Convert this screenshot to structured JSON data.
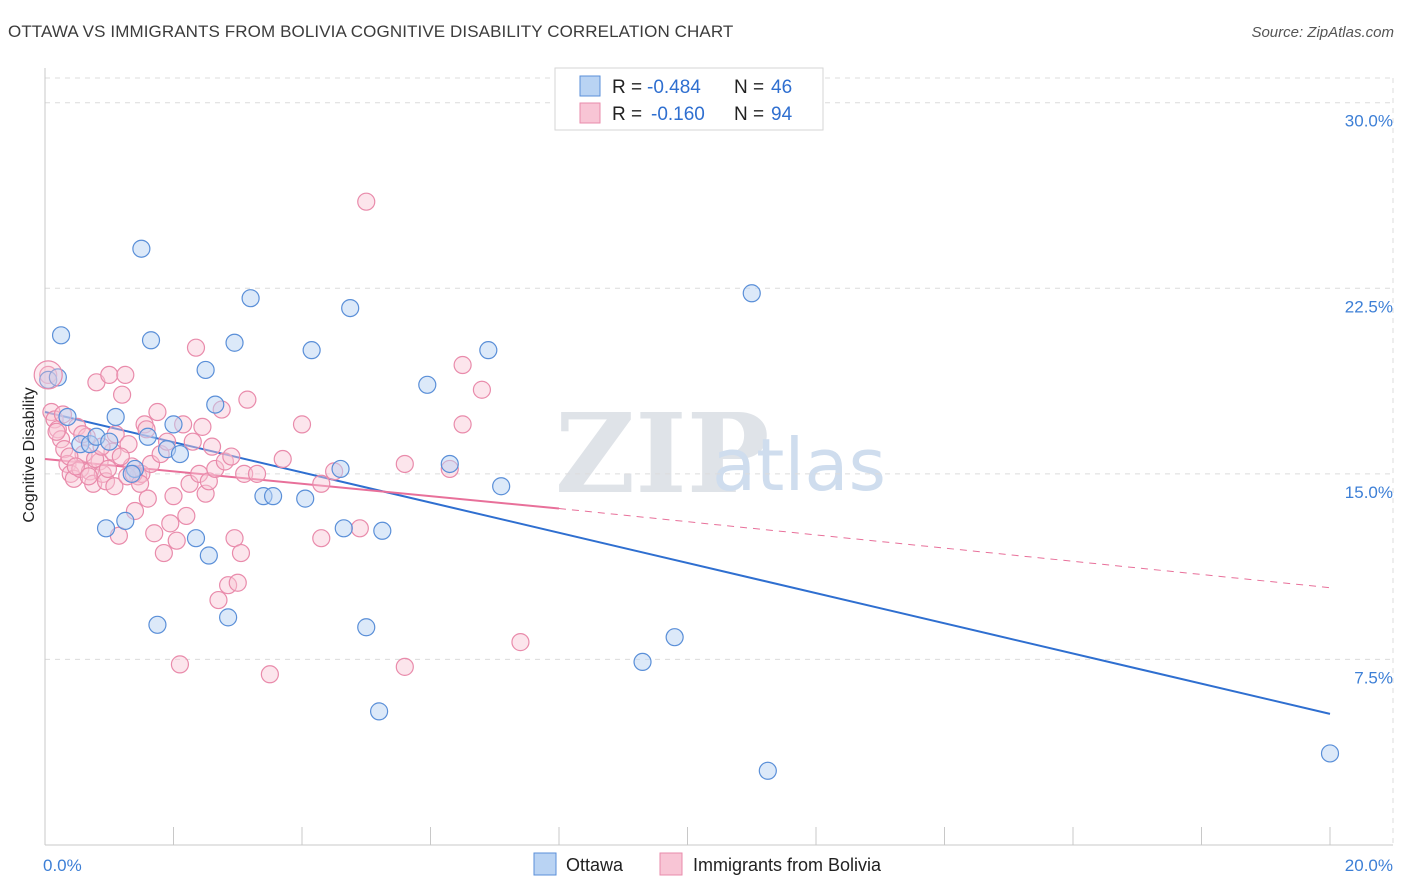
{
  "title": "OTTAWA VS IMMIGRANTS FROM BOLIVIA COGNITIVE DISABILITY CORRELATION CHART",
  "source": "Source: ZipAtlas.com",
  "watermark": {
    "zip": "ZIP",
    "atlas": "atlas"
  },
  "colors": {
    "ottawa_fill": "#b9d3f3",
    "ottawa_stroke": "#5a8fd8",
    "ottawa_line": "#2f6fd0",
    "bolivia_fill": "#f8c5d5",
    "bolivia_stroke": "#e98bab",
    "bolivia_line": "#e8709a",
    "grid": "#dcdcdc",
    "axis_text": "#3d7fd6"
  },
  "legend": {
    "rows": [
      {
        "r_label": "R =",
        "r_value": "-0.484",
        "n_label": "N =",
        "n_value": "46"
      },
      {
        "r_label": "R =",
        "r_value": "-0.160",
        "n_label": "N =",
        "n_value": "94"
      }
    ]
  },
  "chart_data": {
    "type": "scatter",
    "title": "OTTAWA VS IMMIGRANTS FROM BOLIVIA COGNITIVE DISABILITY CORRELATION CHART",
    "xlabel": "",
    "ylabel": "Cognitive Disability",
    "xlim": [
      0,
      20
    ],
    "ylim": [
      0,
      31
    ],
    "x_tick_labels": [
      "0.0%",
      "20.0%"
    ],
    "y_ticks": [
      7.5,
      15.0,
      22.5,
      30.0
    ],
    "y_tick_labels": [
      "7.5%",
      "15.0%",
      "22.5%",
      "30.0%"
    ],
    "grid": true,
    "legend_position": "top-center",
    "series": [
      {
        "name": "Ottawa",
        "r": -0.484,
        "n": 46,
        "trend": {
          "x": [
            0,
            20
          ],
          "y": [
            17.5,
            5.3
          ]
        },
        "points": [
          [
            0.05,
            18.8
          ],
          [
            0.25,
            20.6
          ],
          [
            0.35,
            17.3
          ],
          [
            0.55,
            16.2
          ],
          [
            0.7,
            16.2
          ],
          [
            0.8,
            16.5
          ],
          [
            0.95,
            12.8
          ],
          [
            1.1,
            17.3
          ],
          [
            1.25,
            13.1
          ],
          [
            1.4,
            15.2
          ],
          [
            1.5,
            24.1
          ],
          [
            1.6,
            16.5
          ],
          [
            1.65,
            20.4
          ],
          [
            1.75,
            8.9
          ],
          [
            1.9,
            16.0
          ],
          [
            2.0,
            17.0
          ],
          [
            2.1,
            15.8
          ],
          [
            2.35,
            12.4
          ],
          [
            2.5,
            19.2
          ],
          [
            2.55,
            11.7
          ],
          [
            2.65,
            17.8
          ],
          [
            2.85,
            9.2
          ],
          [
            2.95,
            20.3
          ],
          [
            3.2,
            22.1
          ],
          [
            3.4,
            14.1
          ],
          [
            3.55,
            14.1
          ],
          [
            4.15,
            20.0
          ],
          [
            4.6,
            15.2
          ],
          [
            4.65,
            12.8
          ],
          [
            4.75,
            21.7
          ],
          [
            5.0,
            8.8
          ],
          [
            5.2,
            5.4
          ],
          [
            5.25,
            12.7
          ],
          [
            5.95,
            18.6
          ],
          [
            6.3,
            15.4
          ],
          [
            6.9,
            20.0
          ],
          [
            7.1,
            14.5
          ],
          [
            9.3,
            7.4
          ],
          [
            9.8,
            8.4
          ],
          [
            11.0,
            22.3
          ],
          [
            11.25,
            3.0
          ],
          [
            20.0,
            3.7
          ],
          [
            0.2,
            18.9
          ],
          [
            1.0,
            16.3
          ],
          [
            1.35,
            15.0
          ],
          [
            4.05,
            14.0
          ]
        ]
      },
      {
        "name": "Immigrants from Bolivia",
        "r": -0.16,
        "n": 94,
        "trend": {
          "x": [
            0,
            8
          ],
          "y": [
            15.6,
            13.6
          ]
        },
        "trend_extended": {
          "x": [
            8,
            20
          ],
          "y": [
            13.6,
            10.4
          ]
        },
        "points": [
          [
            0.05,
            19.0
          ],
          [
            0.1,
            17.5
          ],
          [
            0.15,
            17.2
          ],
          [
            0.2,
            16.8
          ],
          [
            0.25,
            16.4
          ],
          [
            0.3,
            16.0
          ],
          [
            0.35,
            15.4
          ],
          [
            0.4,
            15.0
          ],
          [
            0.45,
            14.8
          ],
          [
            0.5,
            16.9
          ],
          [
            0.55,
            15.2
          ],
          [
            0.6,
            15.8
          ],
          [
            0.65,
            16.5
          ],
          [
            0.7,
            15.1
          ],
          [
            0.75,
            14.6
          ],
          [
            0.8,
            18.7
          ],
          [
            0.85,
            15.5
          ],
          [
            0.9,
            15.0
          ],
          [
            0.95,
            14.7
          ],
          [
            1.0,
            19.0
          ],
          [
            1.05,
            15.9
          ],
          [
            1.1,
            16.6
          ],
          [
            1.15,
            12.5
          ],
          [
            1.2,
            18.2
          ],
          [
            1.25,
            19.0
          ],
          [
            1.3,
            16.2
          ],
          [
            1.35,
            15.3
          ],
          [
            1.4,
            13.5
          ],
          [
            1.45,
            14.9
          ],
          [
            1.5,
            15.0
          ],
          [
            1.55,
            17.0
          ],
          [
            1.6,
            14.0
          ],
          [
            1.65,
            15.4
          ],
          [
            1.7,
            12.6
          ],
          [
            1.75,
            17.5
          ],
          [
            1.8,
            15.8
          ],
          [
            1.85,
            11.8
          ],
          [
            1.9,
            16.3
          ],
          [
            1.95,
            13.0
          ],
          [
            2.0,
            14.1
          ],
          [
            2.05,
            12.3
          ],
          [
            2.1,
            7.3
          ],
          [
            2.15,
            17.0
          ],
          [
            2.2,
            13.3
          ],
          [
            2.25,
            14.6
          ],
          [
            2.3,
            16.3
          ],
          [
            2.35,
            20.1
          ],
          [
            2.4,
            15.0
          ],
          [
            2.45,
            16.9
          ],
          [
            2.5,
            14.2
          ],
          [
            2.55,
            14.7
          ],
          [
            2.6,
            16.1
          ],
          [
            2.65,
            15.2
          ],
          [
            2.7,
            9.9
          ],
          [
            2.75,
            17.6
          ],
          [
            2.8,
            15.5
          ],
          [
            2.85,
            10.5
          ],
          [
            2.9,
            15.7
          ],
          [
            2.95,
            12.4
          ],
          [
            3.0,
            10.6
          ],
          [
            3.05,
            11.8
          ],
          [
            3.1,
            15.0
          ],
          [
            3.15,
            18.0
          ],
          [
            3.3,
            15.0
          ],
          [
            3.5,
            6.9
          ],
          [
            3.7,
            15.6
          ],
          [
            4.0,
            17.0
          ],
          [
            4.3,
            14.6
          ],
          [
            4.3,
            12.4
          ],
          [
            4.5,
            15.1
          ],
          [
            4.9,
            12.8
          ],
          [
            5.0,
            26.0
          ],
          [
            5.6,
            7.2
          ],
          [
            5.6,
            15.4
          ],
          [
            6.3,
            15.2
          ],
          [
            6.5,
            19.4
          ],
          [
            6.5,
            17.0
          ],
          [
            6.8,
            18.4
          ],
          [
            7.4,
            8.2
          ],
          [
            0.18,
            16.7
          ],
          [
            0.28,
            17.4
          ],
          [
            0.38,
            15.7
          ],
          [
            0.48,
            15.3
          ],
          [
            0.58,
            16.6
          ],
          [
            0.68,
            14.9
          ],
          [
            0.78,
            15.6
          ],
          [
            0.88,
            16.1
          ],
          [
            0.98,
            15.2
          ],
          [
            1.08,
            14.5
          ],
          [
            1.18,
            15.7
          ],
          [
            1.28,
            14.9
          ],
          [
            1.38,
            15.0
          ],
          [
            1.48,
            14.6
          ],
          [
            1.58,
            16.8
          ]
        ]
      }
    ]
  },
  "bottom_legend": {
    "items": [
      "Ottawa",
      "Immigrants from Bolivia"
    ]
  }
}
